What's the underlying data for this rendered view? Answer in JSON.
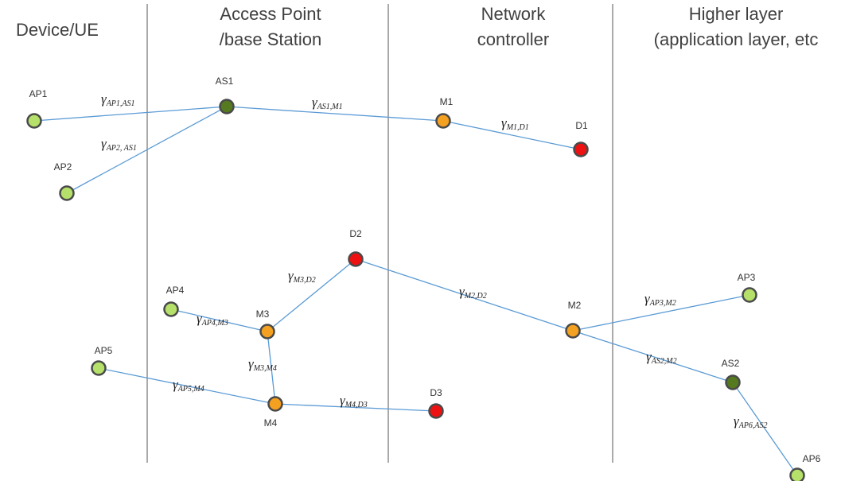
{
  "columns": [
    {
      "lines": [
        "Device/UE"
      ]
    },
    {
      "lines": [
        "Access Point",
        "/base Station"
      ]
    },
    {
      "lines": [
        "Network",
        "controller"
      ]
    },
    {
      "lines": [
        "Higher layer",
        "(application layer, etc"
      ]
    }
  ],
  "nodes": [
    {
      "label": "AP1",
      "kind": "access-point"
    },
    {
      "label": "AP2",
      "kind": "access-point"
    },
    {
      "label": "AS1",
      "kind": "access-station"
    },
    {
      "label": "M1",
      "kind": "mec"
    },
    {
      "label": "D1",
      "kind": "destination"
    },
    {
      "label": "D2",
      "kind": "destination"
    },
    {
      "label": "AP4",
      "kind": "access-point"
    },
    {
      "label": "M3",
      "kind": "mec"
    },
    {
      "label": "AP5",
      "kind": "access-point"
    },
    {
      "label": "M4",
      "kind": "mec"
    },
    {
      "label": "D3",
      "kind": "destination"
    },
    {
      "label": "M2",
      "kind": "mec"
    },
    {
      "label": "AP3",
      "kind": "access-point"
    },
    {
      "label": "AS2",
      "kind": "access-station"
    },
    {
      "label": "AP6",
      "kind": "access-point"
    }
  ],
  "edges": [
    {
      "from": "AP1",
      "to": "AS1",
      "symbol": "γ",
      "sub": "AP1,AS1"
    },
    {
      "from": "AP2",
      "to": "AS1",
      "symbol": "γ",
      "sub": "AP2, AS1"
    },
    {
      "from": "AS1",
      "to": "M1",
      "symbol": "γ",
      "sub": "AS1,M1"
    },
    {
      "from": "M1",
      "to": "D1",
      "symbol": "γ",
      "sub": "M1,D1"
    },
    {
      "from": "M3",
      "to": "D2",
      "symbol": "γ",
      "sub": "M3,D2"
    },
    {
      "from": "D2",
      "to": "M2",
      "symbol": "γ",
      "sub": "M2,D2"
    },
    {
      "from": "AP4",
      "to": "M3",
      "symbol": "γ",
      "sub": "AP4,M3"
    },
    {
      "from": "M3",
      "to": "M4",
      "symbol": "γ",
      "sub": "M3,M4"
    },
    {
      "from": "AP5",
      "to": "M4",
      "symbol": "γ",
      "sub": "AP5,M4"
    },
    {
      "from": "M4",
      "to": "D3",
      "symbol": "γ",
      "sub": "M4,D3"
    },
    {
      "from": "M2",
      "to": "AP3",
      "symbol": "γ",
      "sub": "AP3,M2"
    },
    {
      "from": "M2",
      "to": "AS2",
      "symbol": "γ",
      "sub": "AS2,M2"
    },
    {
      "from": "AS2",
      "to": "AP6",
      "symbol": "γ",
      "sub": "AP6,AS2"
    }
  ]
}
